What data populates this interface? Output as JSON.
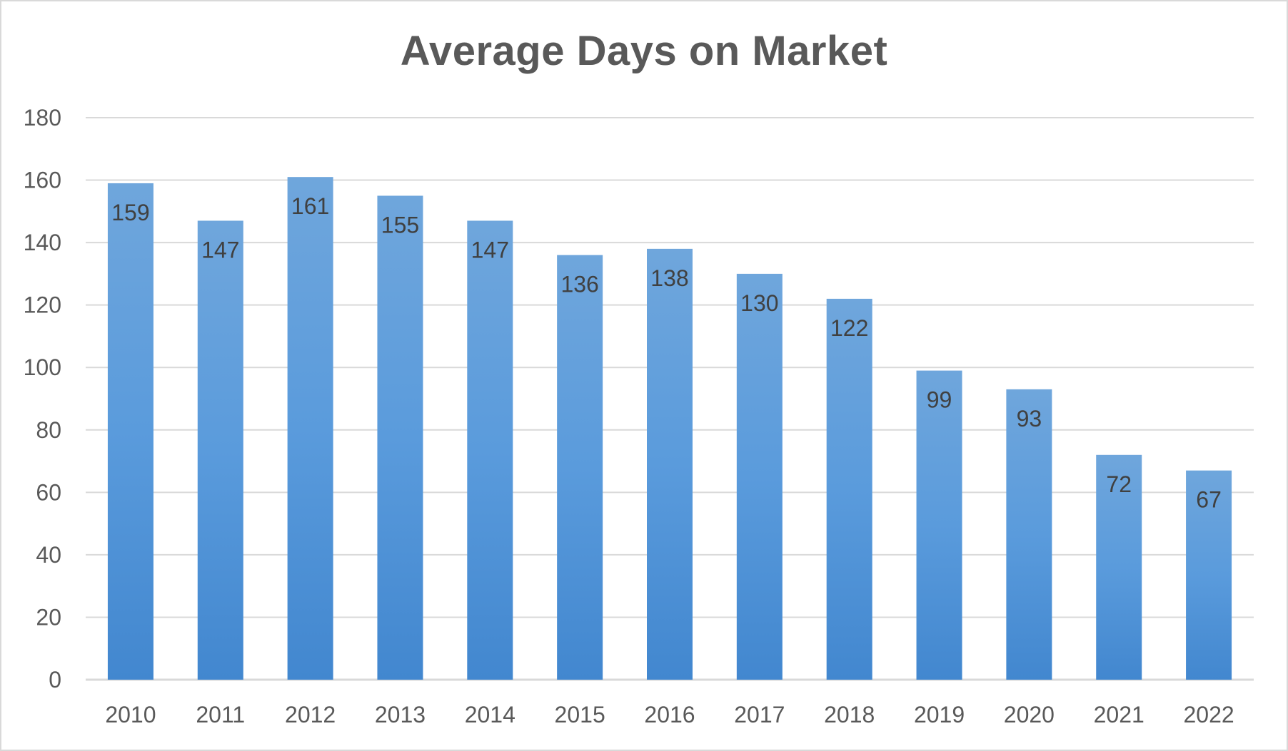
{
  "chart_data": {
    "type": "bar",
    "title": "Average Days on Market",
    "xlabel": "",
    "ylabel": "",
    "categories": [
      "2010",
      "2011",
      "2012",
      "2013",
      "2014",
      "2015",
      "2016",
      "2017",
      "2018",
      "2019",
      "2020",
      "2021",
      "2022"
    ],
    "values": [
      159,
      147,
      161,
      155,
      147,
      136,
      138,
      130,
      122,
      99,
      93,
      72,
      67
    ],
    "data_labels": [
      "159",
      "147",
      "161",
      "155",
      "147",
      "136",
      "138",
      "130",
      "122",
      "99",
      "93",
      "72",
      "67"
    ],
    "y_ticks": [
      "0",
      "20",
      "40",
      "60",
      "80",
      "100",
      "120",
      "140",
      "160",
      "180"
    ],
    "ylim": [
      0,
      180
    ],
    "ytick_step": 20,
    "grid": true,
    "legend": "none",
    "colors": {
      "bar_top": "#6fa6dc",
      "bar_mid": "#5a9bdc",
      "bar_bottom": "#4287cf",
      "gridline": "#d9d9d9",
      "axis_text": "#595959",
      "label_text": "#404040",
      "title_text": "#595959"
    }
  }
}
